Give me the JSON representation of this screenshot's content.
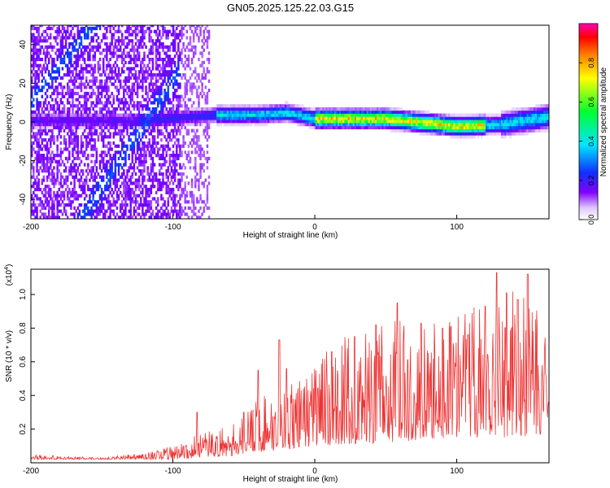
{
  "figure": {
    "title": "GN05.2025.125.22.03.G15"
  },
  "chart_data": [
    {
      "type": "heatmap",
      "xlabel": "Height of straight line (km)",
      "ylabel": "Frequency (Hz)",
      "xlim": [
        -200,
        165
      ],
      "ylim": [
        -50,
        50
      ],
      "x_ticks": [
        -200,
        -100,
        0,
        100
      ],
      "y_ticks": [
        -40,
        -20,
        0,
        20,
        40
      ],
      "colorbar": {
        "label": "Normalized spectral amplitude",
        "range": [
          0,
          1
        ],
        "ticks": [
          0.0,
          0.2,
          0.4,
          0.6,
          0.8
        ],
        "colormap": [
          "#ffffff",
          "#d9b3ff",
          "#7b00ff",
          "#2020ff",
          "#00e0ff",
          "#00ff40",
          "#ffff00",
          "#ff8000",
          "#ff0000",
          "#ff00ff"
        ]
      },
      "ridge": {
        "description_points": [
          [
            -120,
            0
          ],
          [
            -70,
            3
          ],
          [
            -40,
            3
          ],
          [
            -20,
            4
          ],
          [
            0,
            1
          ],
          [
            50,
            1
          ],
          [
            100,
            -3
          ],
          [
            130,
            -2
          ],
          [
            165,
            2
          ]
        ],
        "peak_amplitude_x_range": [
          0,
          120
        ]
      },
      "grid": false
    },
    {
      "type": "line",
      "xlabel": "Height of straight line (km)",
      "ylabel": "SNR (10 * v/v)",
      "y_multiplier": "(x10",
      "y_multiplier_exp": "4",
      "y_multiplier_close": ")",
      "xlim": [
        -200,
        165
      ],
      "ylim": [
        0,
        1.15
      ],
      "x_ticks": [
        -200,
        -100,
        0,
        100
      ],
      "y_ticks": [
        0.2,
        0.4,
        0.6,
        0.8,
        1.0
      ],
      "series": [
        {
          "color": "#ee3333",
          "envelope": [
            [
              -200,
              0.05
            ],
            [
              -150,
              0.03
            ],
            [
              -120,
              0.06
            ],
            [
              -100,
              0.1
            ],
            [
              -80,
              0.18
            ],
            [
              -60,
              0.22
            ],
            [
              -40,
              0.4
            ],
            [
              -20,
              0.45
            ],
            [
              0,
              0.6
            ],
            [
              20,
              0.75
            ],
            [
              40,
              0.8
            ],
            [
              60,
              0.85
            ],
            [
              80,
              0.8
            ],
            [
              100,
              0.95
            ],
            [
              120,
              0.95
            ],
            [
              140,
              1.1
            ],
            [
              165,
              0.8
            ]
          ],
          "baseline": [
            [
              -200,
              0.02
            ],
            [
              -100,
              0.02
            ],
            [
              -60,
              0.04
            ],
            [
              -20,
              0.08
            ],
            [
              0,
              0.1
            ],
            [
              50,
              0.12
            ],
            [
              100,
              0.15
            ],
            [
              165,
              0.15
            ]
          ],
          "spikes": [
            [
              -83,
              0.3
            ],
            [
              -50,
              0.3
            ],
            [
              -40,
              0.55
            ],
            [
              -25,
              0.73
            ],
            [
              -20,
              0.56
            ],
            [
              12,
              0.66
            ],
            [
              28,
              0.75
            ],
            [
              43,
              0.82
            ],
            [
              58,
              0.95
            ],
            [
              75,
              0.83
            ],
            [
              90,
              0.8
            ],
            [
              108,
              0.76
            ],
            [
              120,
              0.93
            ],
            [
              128,
              1.13
            ],
            [
              135,
              1.01
            ],
            [
              143,
              0.97
            ],
            [
              150,
              1.12
            ]
          ]
        }
      ],
      "grid": false
    }
  ]
}
